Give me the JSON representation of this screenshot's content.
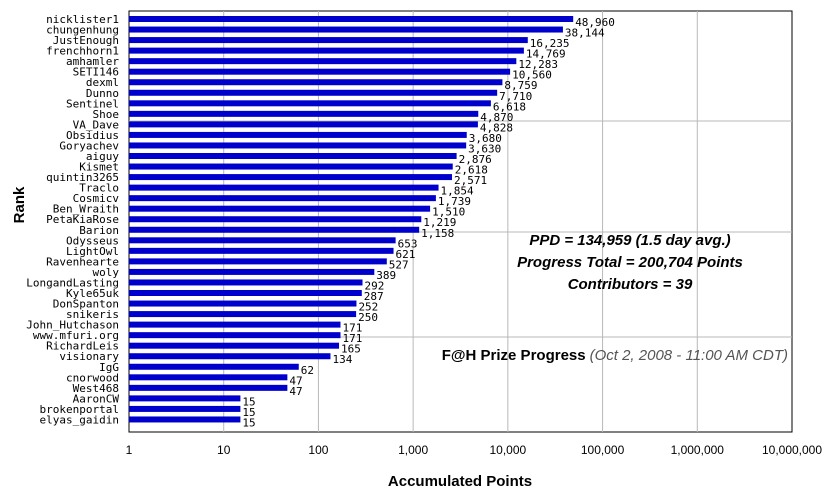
{
  "chart_data": {
    "type": "bar",
    "orientation": "horizontal",
    "xscale": "log",
    "xlim": [
      1,
      10000000
    ],
    "xlabel": "Accumulated Points",
    "ylabel": "Rank",
    "grid": true,
    "bar_color": "#0000cc",
    "xticks": [
      "1",
      "10",
      "100",
      "1,000",
      "10,000",
      "100,000",
      "1,000,000",
      "10,000,000"
    ],
    "categories": [
      "nicklister1",
      "chungenhung",
      "JustEnough",
      "frenchhorn1",
      "amhamler",
      "SETI146",
      "dexml",
      "Dunno",
      "Sentinel",
      "Shoe",
      "VA_Dave",
      "Obsidius",
      "Goryachev",
      "aiguy",
      "Kismet",
      "quintin3265",
      "Traclo",
      "Cosmicv",
      "Ben_Wraith",
      "PetaKiaRose",
      "Barion",
      "Odysseus",
      "LightOwl",
      "Ravenhearte",
      "woly",
      "LongandLasting",
      "Kyle65uk",
      "DonSpanton",
      "snikeris",
      "John_Hutchason",
      "www.mfuri.org",
      "RichardLeis",
      "visionary",
      "IgG",
      "cnorwood",
      "West468",
      "AaronCW",
      "brokenportal",
      "elyas_gaidin"
    ],
    "values": [
      48960,
      38144,
      16235,
      14769,
      12283,
      10560,
      8759,
      7710,
      6618,
      4870,
      4828,
      3680,
      3630,
      2876,
      2618,
      2571,
      1854,
      1739,
      1510,
      1219,
      1158,
      653,
      621,
      527,
      389,
      292,
      287,
      252,
      250,
      171,
      171,
      165,
      134,
      62,
      47,
      47,
      15,
      15,
      15
    ],
    "value_labels": [
      "48,960",
      "38,144",
      "16,235",
      "14,769",
      "12,283",
      "10,560",
      "8,759",
      "7,710",
      "6,618",
      "4,870",
      "4,828",
      "3,680",
      "3,630",
      "2,876",
      "2,618",
      "2,571",
      "1,854",
      "1,739",
      "1,510",
      "1,219",
      "1,158",
      "653",
      "621",
      "527",
      "389",
      "292",
      "287",
      "252",
      "250",
      "171",
      "171",
      "165",
      "134",
      "62",
      "47",
      "47",
      "15",
      "15",
      "15"
    ],
    "annotations": {
      "ppd": "PPD = 134,959 (1.5 day avg.)",
      "progress_total": "Progress Total = 200,704 Points",
      "contributors": "Contributors = 39",
      "title_main": "F@H Prize Progress",
      "title_date": "(Oct 2, 2008 - 11:00 AM CDT)"
    }
  }
}
